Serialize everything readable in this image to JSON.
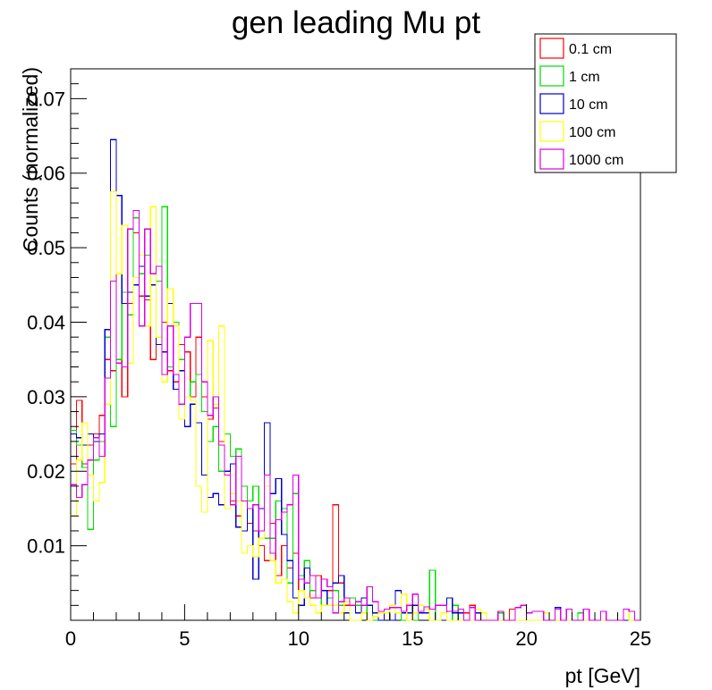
{
  "chart_data": {
    "type": "histogram",
    "title": "gen leading Mu pt",
    "xlabel": "pt [GeV]",
    "ylabel": "Counts (normalized)",
    "xlim": [
      0,
      25
    ],
    "ylim": [
      0,
      0.074
    ],
    "bin_width": 0.25,
    "x_ticks": [
      0,
      5,
      10,
      15,
      20,
      25
    ],
    "y_ticks": [
      0.01,
      0.02,
      0.03,
      0.04,
      0.05,
      0.06,
      0.07
    ],
    "y_tick_labels": [
      "0.01",
      "0.02",
      "0.03",
      "0.04",
      "0.05",
      "0.06",
      "0.07"
    ],
    "legend_position": "top-right",
    "series": [
      {
        "name": "0.1 cm",
        "color": "#ff0000",
        "values": [
          0.021,
          0.0295,
          0.021,
          0.0235,
          0.025,
          0.0275,
          0.035,
          0.0335,
          0.0465,
          0.03,
          0.0425,
          0.052,
          0.0435,
          0.043,
          0.035,
          0.038,
          0.04,
          0.0335,
          0.032,
          0.037,
          0.036,
          0.03,
          0.038,
          0.03,
          0.027,
          0.0285,
          0.024,
          0.02,
          0.016,
          0.014,
          0.016,
          0.013,
          0.012,
          0.01,
          0.008,
          0.013,
          0.006,
          0.01,
          0.007,
          0.009,
          0.004,
          0.007,
          0.003,
          0.006,
          0.004,
          0.004,
          0.0155,
          0.005,
          0.002,
          0.003,
          0.002,
          0.001,
          0.002,
          0.001,
          0,
          0.001,
          0,
          0.001,
          0.001,
          0.002,
          0,
          0.001,
          0.001,
          0.0015,
          0,
          0.001,
          0,
          0,
          0,
          0.001,
          0.002,
          0,
          0,
          0,
          0,
          0,
          0,
          0.0015,
          0,
          0,
          0,
          0,
          0,
          0,
          0,
          0,
          0,
          0,
          0,
          0,
          0,
          0,
          0,
          0,
          0,
          0,
          0,
          0,
          0,
          0
        ]
      },
      {
        "name": "1 cm",
        "color": "#00dd00",
        "values": [
          0.0255,
          0.0235,
          0.0205,
          0.0122,
          0.0215,
          0.024,
          0.038,
          0.026,
          0.035,
          0.044,
          0.041,
          0.054,
          0.0465,
          0.049,
          0.045,
          0.0455,
          0.0555,
          0.034,
          0.04,
          0.035,
          0.03,
          0.032,
          0.033,
          0.028,
          0.024,
          0.026,
          0.02,
          0.025,
          0.022,
          0.023,
          0.018,
          0.016,
          0.018,
          0.015,
          0.011,
          0.011,
          0.016,
          0.015,
          0.005,
          0.017,
          0.006,
          0.008,
          0.004,
          0.003,
          0.002,
          0.003,
          0.004,
          0.002,
          0.003,
          0.003,
          0.002,
          0.001,
          0.002,
          0,
          0.001,
          0.001,
          0,
          0.001,
          0,
          0,
          0,
          0.001,
          0.001,
          0.0067,
          0,
          0.001,
          0,
          0.002,
          0,
          0,
          0,
          0,
          0,
          0,
          0,
          0.001,
          0,
          0,
          0,
          0,
          0,
          0,
          0,
          0,
          0,
          0,
          0,
          0,
          0,
          0.001,
          0,
          0,
          0,
          0,
          0,
          0,
          0,
          0,
          0,
          0
        ]
      },
      {
        "name": "10 cm",
        "color": "#0000cc",
        "values": [
          0.025,
          0.0245,
          0.0235,
          0.025,
          0.024,
          0.025,
          0.039,
          0.0645,
          0.057,
          0.0425,
          0.044,
          0.045,
          0.0475,
          0.0435,
          0.045,
          0.037,
          0.036,
          0.0425,
          0.031,
          0.0335,
          0.026,
          0.029,
          0.0265,
          0.0195,
          0.0165,
          0.017,
          0.0155,
          0.02,
          0.021,
          0.0125,
          0.012,
          0.015,
          0.0055,
          0.015,
          0.0265,
          0.017,
          0.019,
          0.0115,
          0.008,
          0.003,
          0.002,
          0.007,
          0.006,
          0.003,
          0.004,
          0.002,
          0.005,
          0.006,
          0.001,
          0.002,
          0.001,
          0.003,
          0.002,
          0.001,
          0,
          0.001,
          0,
          0.004,
          0.001,
          0.001,
          0.002,
          0.001,
          0.001,
          0,
          0,
          0,
          0.003,
          0.001,
          0.001,
          0,
          0,
          0.001,
          0,
          0,
          0,
          0,
          0,
          0,
          0,
          0,
          0,
          0,
          0,
          0,
          0,
          0.0017,
          0,
          0,
          0,
          0,
          0,
          0,
          0,
          0,
          0,
          0,
          0,
          0,
          0,
          0
        ]
      },
      {
        "name": "100 cm",
        "color": "#ffff00",
        "values": [
          0.014,
          0.0215,
          0.0265,
          0.0195,
          0.016,
          0.0185,
          0.029,
          0.0575,
          0.0465,
          0.053,
          0.0345,
          0.046,
          0.049,
          0.0395,
          0.0555,
          0.038,
          0.032,
          0.0445,
          0.0395,
          0.027,
          0.03,
          0.0295,
          0.018,
          0.0145,
          0.0375,
          0.029,
          0.0395,
          0.015,
          0.017,
          0.016,
          0.009,
          0.01,
          0.0085,
          0.011,
          0.018,
          0.008,
          0.005,
          0.0055,
          0.0025,
          0.001,
          0.004,
          0.003,
          0.002,
          0.001,
          0.002,
          0.002,
          0.002,
          0.001,
          0.0025,
          0,
          0,
          0.001,
          0,
          0.0005,
          0.001,
          0.001,
          0.002,
          0.001,
          0.0035,
          0,
          0.001,
          0.002,
          0.0015,
          0,
          0,
          0.001,
          0,
          0,
          0,
          0,
          0,
          0.0015,
          0.001,
          0,
          0,
          0,
          0,
          0,
          0,
          0,
          0,
          0,
          0,
          0.001,
          0,
          0,
          0,
          0,
          0,
          0,
          0,
          0,
          0,
          0,
          0,
          0,
          0,
          0.0015,
          0,
          0
        ]
      },
      {
        "name": "1000 cm",
        "color": "#dd00dd",
        "values": [
          0.0182,
          0.0165,
          0.0182,
          0.0215,
          0.0245,
          0.022,
          0.0325,
          0.0455,
          0.0345,
          0.034,
          0.0525,
          0.055,
          0.0395,
          0.0525,
          0.0465,
          0.0475,
          0.033,
          0.0395,
          0.033,
          0.029,
          0.038,
          0.0425,
          0.0425,
          0.032,
          0.0275,
          0.03,
          0.0235,
          0.0195,
          0.0155,
          0.022,
          0.016,
          0.015,
          0.0155,
          0.012,
          0.0195,
          0.009,
          0.0135,
          0.0145,
          0.0155,
          0.0195,
          0.0055,
          0.005,
          0.006,
          0.003,
          0.0055,
          0.0045,
          0.001,
          0.0025,
          0.003,
          0.002,
          0.0025,
          0.002,
          0.0045,
          0.0025,
          0.0012,
          0.0015,
          0.0017,
          0.0017,
          0.0012,
          0.002,
          0.0035,
          0.0012,
          0.0018,
          0.0015,
          0.002,
          0.002,
          0.0012,
          0.0012,
          0.0015,
          0,
          0.0017,
          0,
          0,
          0,
          0,
          0.0012,
          0,
          0,
          0.0017,
          0.002,
          0.001,
          0.0012,
          0.0012,
          0,
          0,
          0.0015,
          0,
          0.0015,
          0,
          0,
          0.0015,
          0,
          0,
          0.0012,
          0,
          0,
          0,
          0.0015,
          0.0012,
          0
        ]
      }
    ]
  }
}
